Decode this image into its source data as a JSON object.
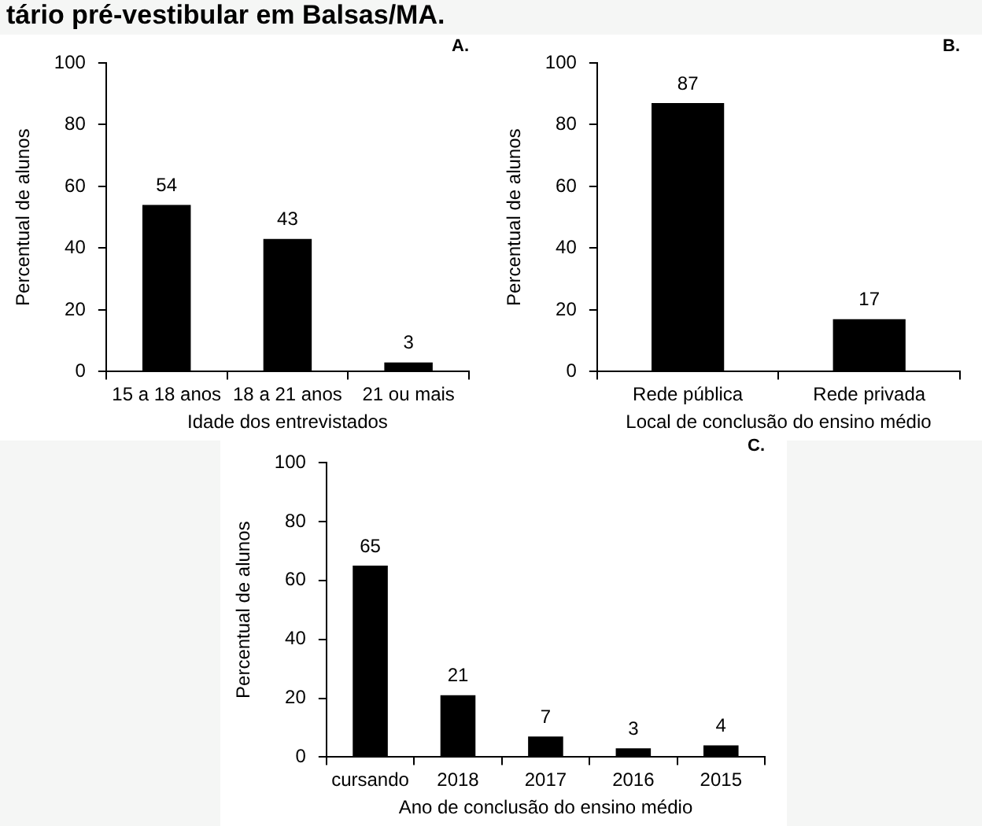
{
  "chart_data": [
    {
      "type": "bar",
      "title": "tário pré-vestibular em Balsas/MA.",
      "categories": [
        "15 a 18 anos",
        "18 a 21 anos",
        "21 ou mais"
      ],
      "values": [
        54,
        43,
        3
      ],
      "color": "#000000",
      "xlabel": "Idade dos entrevistados",
      "ylabel": "Percentual de alunos",
      "ylim": [
        0,
        100
      ],
      "yticks": [
        0,
        20,
        40,
        60,
        80,
        100
      ],
      "data_labels": true,
      "grid": false,
      "legend": false,
      "annotations": [
        "A."
      ]
    },
    {
      "type": "bar",
      "categories": [
        "Rede pública",
        "Rede privada"
      ],
      "values": [
        87,
        17
      ],
      "color": "#000000",
      "xlabel": "Local de conclusão do ensino médio",
      "ylabel": "Percentual de alunos",
      "ylim": [
        0,
        100
      ],
      "yticks": [
        0,
        20,
        40,
        60,
        80,
        100
      ],
      "data_labels": true,
      "grid": false,
      "legend": false,
      "annotations": [
        "B."
      ]
    },
    {
      "type": "bar",
      "categories": [
        "cursando",
        "2018",
        "2017",
        "2016",
        "2015"
      ],
      "values": [
        65,
        21,
        7,
        3,
        4
      ],
      "color": "#000000",
      "xlabel": "Ano de conclusão do ensino médio",
      "ylabel": "Percentual de alunos",
      "ylim": [
        0,
        100
      ],
      "yticks": [
        0,
        20,
        40,
        60,
        80,
        100
      ],
      "data_labels": true,
      "grid": false,
      "legend": false,
      "annotations": [
        "C."
      ]
    }
  ]
}
